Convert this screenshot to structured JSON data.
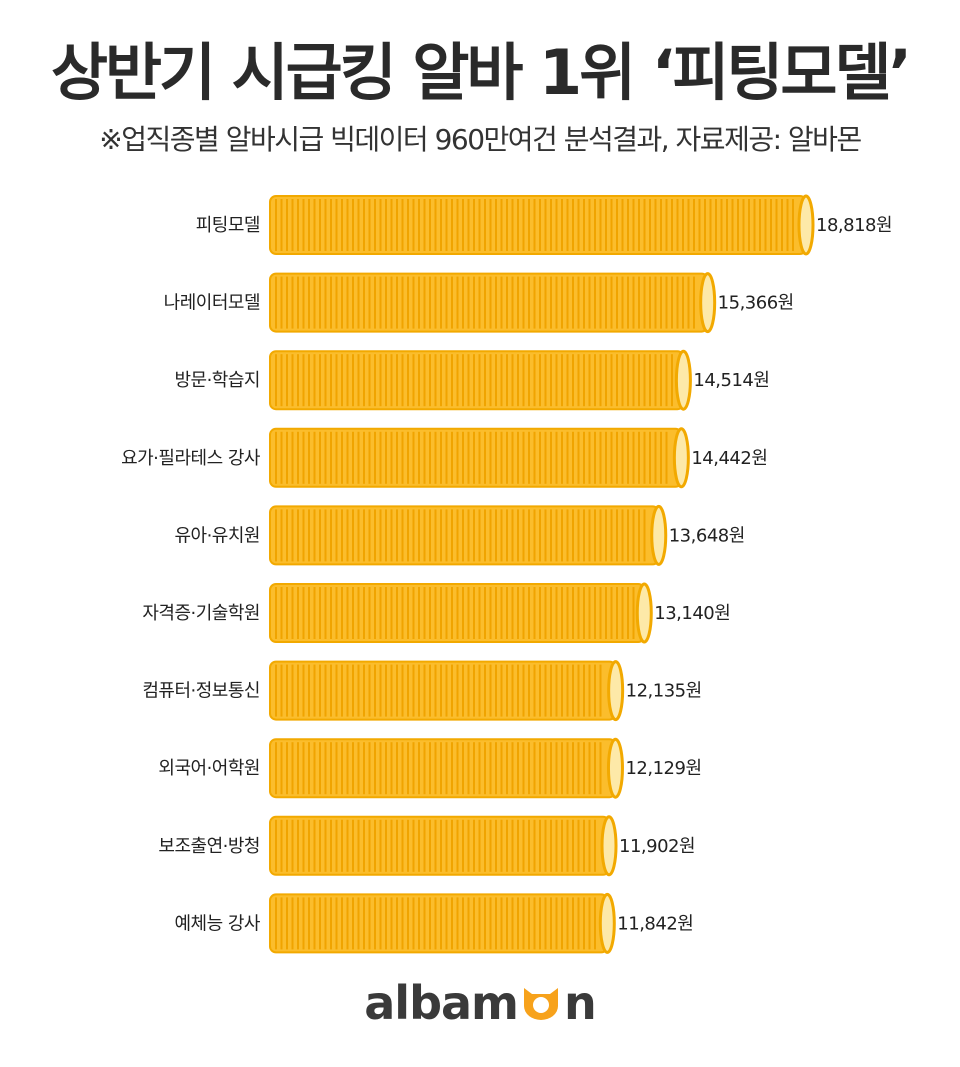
{
  "title": "상반기 시급킹 알바 1위 ‘피팅모델’",
  "subtitle": "※업직종별 알바시급 빅데이터 960만여건 분석결과,  자료제공: 알바몬",
  "logo": {
    "text": "albamon",
    "prefix": "albam",
    "suffix": "n",
    "accent_color": "#f7a21b"
  },
  "colors": {
    "coin_body": "#fbbd2c",
    "coin_stripe": "#f0a400",
    "coin_outline": "#f2a900",
    "coin_face": "#fde9a8"
  },
  "chart_data": {
    "type": "bar",
    "orientation": "horizontal",
    "title": "상반기 시급킹 알바 1위 ‘피팅모델’",
    "subtitle": "※업직종별 알바시급 빅데이터 960만여건 분석결과,  자료제공: 알바몬",
    "unit": "원",
    "categories": [
      "피팅모델",
      "나레이터모델",
      "방문·학습지",
      "요가·필라테스 강사",
      "유아·유치원",
      "자격증·기술학원",
      "컴퓨터·정보통신",
      "외국어·어학원",
      "보조출연·방청",
      "예체능 강사"
    ],
    "values": [
      18818,
      15366,
      14514,
      14442,
      13648,
      13140,
      12135,
      12129,
      11902,
      11842
    ],
    "value_labels": [
      "18,818원",
      "15,366원",
      "14,514원",
      "14,442원",
      "13,648원",
      "13,140원",
      "12,135원",
      "12,129원",
      "11,902원",
      "11,842원"
    ],
    "grid": false,
    "legend": "none"
  }
}
